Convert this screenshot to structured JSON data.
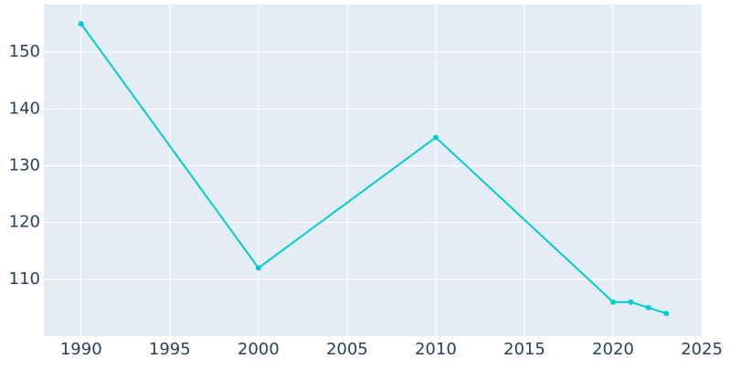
{
  "chart_data": {
    "type": "line",
    "x": [
      1990,
      2000,
      2010,
      2020,
      2021,
      2022,
      2023
    ],
    "series": [
      {
        "color": "#00cdd0",
        "values": [
          155,
          112,
          135,
          106,
          106,
          105,
          104
        ]
      }
    ],
    "xlim": [
      1987.9,
      2025
    ],
    "xticks": [
      1990,
      1995,
      2000,
      2005,
      2010,
      2015,
      2020,
      2025
    ],
    "ylim": [
      100,
      158.4
    ],
    "yticks": [
      110,
      120,
      130,
      140,
      150
    ],
    "grid": true
  }
}
